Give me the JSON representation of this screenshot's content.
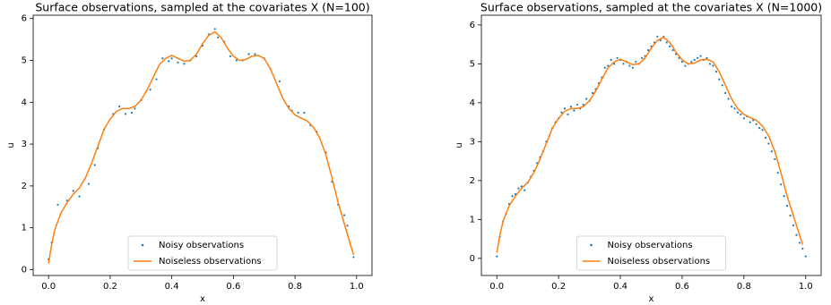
{
  "chart_data": [
    {
      "type": "scatter",
      "title": "Surface observations, sampled at the covariates X (N=100)",
      "xlabel": "x",
      "ylabel": "u",
      "xlim": [
        -0.05,
        1.05
      ],
      "ylim": [
        -0.14,
        6.08
      ],
      "xticks": [
        {
          "value": 0,
          "label": "0.0"
        },
        0.2,
        0.4,
        0.6,
        0.8,
        {
          "value": 1,
          "label": "1.0"
        }
      ],
      "yticks": [
        0,
        1,
        2,
        3,
        4,
        5,
        6
      ],
      "legend": "lower center",
      "series": [
        {
          "name": "Noisy observations",
          "type": "scatter",
          "color": "#1f77b4",
          "x": [
            0.0,
            0.01,
            0.03,
            0.06,
            0.08,
            0.1,
            0.13,
            0.15,
            0.16,
            0.18,
            0.21,
            0.23,
            0.25,
            0.27,
            0.28,
            0.3,
            0.33,
            0.35,
            0.37,
            0.39,
            0.4,
            0.42,
            0.44,
            0.46,
            0.48,
            0.5,
            0.52,
            0.54,
            0.55,
            0.57,
            0.59,
            0.61,
            0.63,
            0.65,
            0.67,
            0.7,
            0.72,
            0.75,
            0.78,
            0.79,
            0.81,
            0.83,
            0.85,
            0.87,
            0.9,
            0.92,
            0.94,
            0.96,
            0.97,
            0.99
          ],
          "values": [
            0.25,
            0.65,
            1.55,
            1.65,
            1.88,
            1.75,
            2.05,
            2.5,
            2.9,
            3.35,
            3.72,
            3.9,
            3.72,
            3.75,
            3.85,
            4.05,
            4.3,
            4.55,
            5.05,
            4.98,
            5.05,
            4.95,
            4.92,
            5.0,
            5.1,
            5.35,
            5.62,
            5.75,
            5.55,
            5.45,
            5.1,
            5.0,
            5.0,
            5.15,
            5.15,
            5.05,
            4.8,
            4.5,
            3.9,
            3.8,
            3.75,
            3.75,
            3.45,
            3.3,
            2.8,
            2.1,
            1.55,
            1.3,
            1.05,
            0.3
          ]
        },
        {
          "name": "Noiseless observations",
          "type": "line",
          "color": "#ff7f0e",
          "x": [
            0,
            0.01,
            0.02,
            0.04,
            0.06,
            0.08,
            0.1,
            0.12,
            0.14,
            0.16,
            0.18,
            0.2,
            0.22,
            0.24,
            0.26,
            0.28,
            0.3,
            0.32,
            0.34,
            0.36,
            0.38,
            0.4,
            0.42,
            0.44,
            0.46,
            0.48,
            0.5,
            0.52,
            0.54,
            0.56,
            0.58,
            0.6,
            0.62,
            0.64,
            0.66,
            0.68,
            0.7,
            0.72,
            0.74,
            0.76,
            0.78,
            0.8,
            0.82,
            0.84,
            0.86,
            0.88,
            0.9,
            0.92,
            0.94,
            0.96,
            0.98,
            0.99
          ],
          "values": [
            0.15,
            0.6,
            0.95,
            1.35,
            1.6,
            1.8,
            1.95,
            2.2,
            2.55,
            2.95,
            3.35,
            3.6,
            3.78,
            3.85,
            3.85,
            3.9,
            4.05,
            4.3,
            4.6,
            4.9,
            5.05,
            5.12,
            5.05,
            4.98,
            5.0,
            5.15,
            5.4,
            5.6,
            5.68,
            5.55,
            5.3,
            5.1,
            5.0,
            5.02,
            5.1,
            5.12,
            5.05,
            4.8,
            4.45,
            4.1,
            3.85,
            3.7,
            3.62,
            3.55,
            3.4,
            3.15,
            2.75,
            2.2,
            1.6,
            1.1,
            0.6,
            0.35
          ]
        }
      ]
    },
    {
      "type": "scatter",
      "title": "Surface observations, sampled at the covariates X (N=1000)",
      "xlabel": "x",
      "ylabel": "u",
      "xlim": [
        -0.05,
        1.05
      ],
      "ylim": [
        -0.44,
        6.25
      ],
      "xticks": [
        {
          "value": 0,
          "label": "0.0"
        },
        0.2,
        0.4,
        0.6,
        0.8,
        {
          "value": 1,
          "label": "1.0"
        }
      ],
      "yticks": [
        0,
        1,
        2,
        3,
        4,
        5,
        6
      ],
      "legend": "lower center",
      "series": [
        {
          "name": "Noisy observations",
          "type": "scatter",
          "color": "#1f77b4",
          "x": [
            0,
            0.01,
            0.02,
            0.03,
            0.04,
            0.05,
            0.06,
            0.07,
            0.08,
            0.09,
            0.1,
            0.11,
            0.12,
            0.13,
            0.14,
            0.15,
            0.16,
            0.17,
            0.18,
            0.19,
            0.2,
            0.21,
            0.22,
            0.23,
            0.24,
            0.25,
            0.26,
            0.27,
            0.28,
            0.29,
            0.3,
            0.31,
            0.32,
            0.33,
            0.34,
            0.35,
            0.36,
            0.37,
            0.38,
            0.39,
            0.4,
            0.41,
            0.42,
            0.43,
            0.44,
            0.45,
            0.46,
            0.47,
            0.48,
            0.49,
            0.5,
            0.51,
            0.52,
            0.53,
            0.54,
            0.55,
            0.56,
            0.57,
            0.58,
            0.59,
            0.6,
            0.61,
            0.62,
            0.63,
            0.64,
            0.65,
            0.66,
            0.67,
            0.68,
            0.69,
            0.7,
            0.71,
            0.72,
            0.73,
            0.74,
            0.75,
            0.76,
            0.77,
            0.78,
            0.79,
            0.8,
            0.81,
            0.82,
            0.83,
            0.84,
            0.85,
            0.86,
            0.87,
            0.88,
            0.89,
            0.9,
            0.91,
            0.92,
            0.93,
            0.94,
            0.95,
            0.96,
            0.97,
            0.98,
            0.99,
            1
          ],
          "values": [
            0.05,
            0.55,
            0.95,
            1.15,
            1.4,
            1.6,
            1.65,
            1.8,
            1.85,
            1.75,
            1.95,
            2.1,
            2.25,
            2.45,
            2.6,
            2.75,
            3.0,
            3.15,
            3.35,
            3.5,
            3.6,
            3.75,
            3.85,
            3.7,
            3.9,
            3.8,
            3.95,
            3.85,
            3.95,
            4.1,
            4.05,
            4.25,
            4.35,
            4.5,
            4.65,
            4.9,
            4.95,
            5.1,
            5.0,
            5.15,
            5.1,
            5.0,
            5.05,
            4.95,
            4.9,
            5.05,
            5.0,
            5.15,
            5.2,
            5.35,
            5.45,
            5.55,
            5.7,
            5.6,
            5.7,
            5.55,
            5.45,
            5.35,
            5.25,
            5.15,
            5.05,
            4.95,
            5.0,
            5.05,
            5.1,
            5.15,
            5.2,
            5.1,
            5.15,
            5.0,
            4.95,
            4.8,
            4.6,
            4.45,
            4.25,
            4.1,
            3.9,
            3.85,
            3.75,
            3.7,
            3.6,
            3.65,
            3.5,
            3.55,
            3.45,
            3.35,
            3.3,
            3.1,
            2.95,
            2.75,
            2.55,
            2.2,
            1.9,
            1.6,
            1.35,
            1.1,
            0.85,
            0.6,
            0.4,
            0.25,
            0.05
          ]
        },
        {
          "name": "Noiseless observations",
          "type": "line",
          "color": "#ff7f0e",
          "x": [
            0,
            0.01,
            0.02,
            0.04,
            0.06,
            0.08,
            0.1,
            0.12,
            0.14,
            0.16,
            0.18,
            0.2,
            0.22,
            0.24,
            0.26,
            0.28,
            0.3,
            0.32,
            0.34,
            0.36,
            0.38,
            0.4,
            0.42,
            0.44,
            0.46,
            0.48,
            0.5,
            0.52,
            0.54,
            0.56,
            0.58,
            0.6,
            0.62,
            0.64,
            0.66,
            0.68,
            0.7,
            0.72,
            0.74,
            0.76,
            0.78,
            0.8,
            0.82,
            0.84,
            0.86,
            0.88,
            0.9,
            0.92,
            0.94,
            0.96,
            0.98,
            0.99
          ],
          "values": [
            0.15,
            0.6,
            0.95,
            1.35,
            1.6,
            1.8,
            1.95,
            2.2,
            2.55,
            2.95,
            3.35,
            3.6,
            3.78,
            3.85,
            3.85,
            3.9,
            4.05,
            4.3,
            4.6,
            4.9,
            5.05,
            5.12,
            5.05,
            4.98,
            5.0,
            5.15,
            5.4,
            5.6,
            5.68,
            5.55,
            5.3,
            5.1,
            5.0,
            5.02,
            5.1,
            5.12,
            5.05,
            4.8,
            4.45,
            4.1,
            3.85,
            3.7,
            3.62,
            3.55,
            3.4,
            3.15,
            2.75,
            2.2,
            1.6,
            1.1,
            0.6,
            0.35
          ]
        }
      ]
    }
  ]
}
